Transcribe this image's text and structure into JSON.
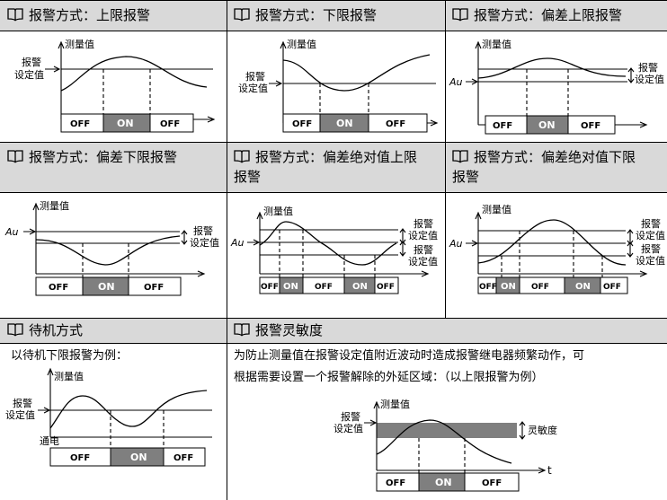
{
  "panels": {
    "p1": {
      "title": "报警方式：上限报警"
    },
    "p2": {
      "title": "报警方式：下限报警"
    },
    "p3": {
      "title": "报警方式：偏差上限报警"
    },
    "p4": {
      "title": "报警方式：偏差下限报警"
    },
    "p5": {
      "title_line1": "报警方式：偏差绝对值上限",
      "title_line2": "报警"
    },
    "p6": {
      "title_line1": "报警方式：偏差绝对值下限",
      "title_line2": "报警"
    },
    "p7": {
      "title": "待机方式",
      "text": "以待机下限报警为例："
    },
    "p8": {
      "title": "报警灵敏度",
      "text_line1": "为防止测量值在报警设定值附近波动时造成报警继电器频繁动作，可",
      "text_line2": "根据需要设置一个报警解除的外延区域：（以上限报警为例）"
    }
  },
  "labels": {
    "measured": "测量值",
    "alarm": "报警",
    "setvalue": "设定值",
    "alarm_set": "报警设定值",
    "au": "Au",
    "off": "OFF",
    "on": "ON",
    "power_on": "通电",
    "sensitivity": "灵敏度",
    "t": "t"
  },
  "colors": {
    "header_bg": "#d9d9d9",
    "on_fill": "#7f7f7f",
    "band_fill": "#7f7f7f"
  },
  "icon": "book-icon"
}
